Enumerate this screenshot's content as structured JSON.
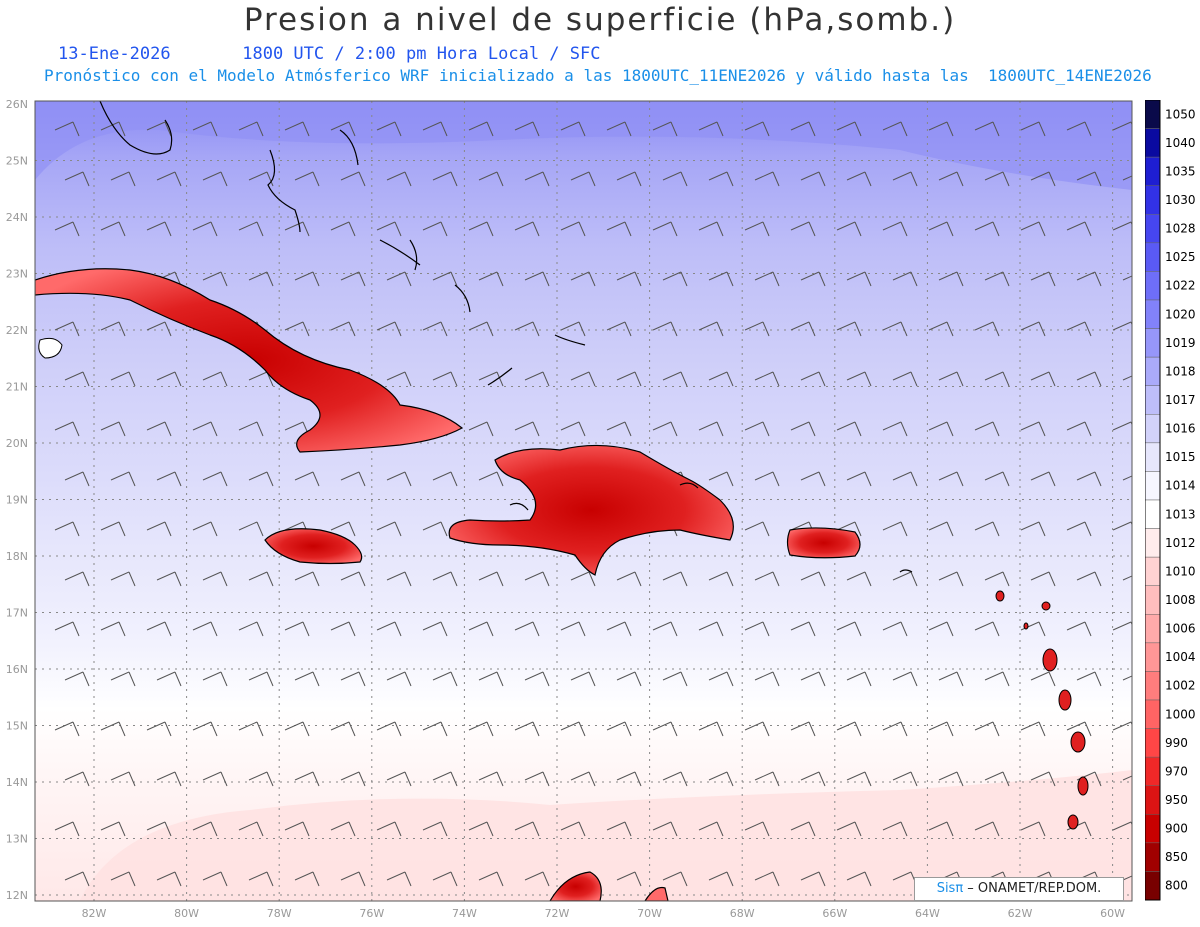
{
  "title": "Presion a nivel de superficie (hPa,somb.)",
  "subtitle_date": "13-Ene-2026",
  "subtitle_time": "1800 UTC / 2:00 pm Hora Local / SFC",
  "subtitle_model": "Pronóstico con el Modelo Atmósferico WRF inicializado a las 1800UTC_11ENE2026 y válido hasta las  1800UTC_14ENE2026",
  "credit_brand": "Sisπ",
  "credit_text": " – ONAMET/REP.DOM.",
  "lat_labels": [
    "26N",
    "25N",
    "24N",
    "23N",
    "22N",
    "21N",
    "20N",
    "19N",
    "18N",
    "17N",
    "16N",
    "15N",
    "14N",
    "13N",
    "12N"
  ],
  "lon_labels": [
    "82W",
    "80W",
    "78W",
    "76W",
    "74W",
    "72W",
    "70W",
    "68W",
    "66W",
    "64W",
    "62W",
    "60W"
  ],
  "colorbar": {
    "levels": [
      "1050",
      "1040",
      "1035",
      "1030",
      "1028",
      "1025",
      "1022",
      "1020",
      "1019",
      "1018",
      "1017",
      "1016",
      "1015",
      "1014",
      "1013",
      "1012",
      "1010",
      "1008",
      "1006",
      "1004",
      "1002",
      "1000",
      "990",
      "970",
      "950",
      "900",
      "850",
      "800"
    ],
    "colors": [
      "#0a0a4a",
      "#0a0aa0",
      "#1e1ed2",
      "#3232e6",
      "#4646f0",
      "#5a5af5",
      "#6e6ef8",
      "#8282fa",
      "#9696fa",
      "#aaaafa",
      "#bebefa",
      "#d2d2fa",
      "#e6e6fc",
      "#f6f6ff",
      "#ffffff",
      "#ffecec",
      "#ffd2d2",
      "#ffbebe",
      "#ffaaaa",
      "#ff9696",
      "#ff7d7d",
      "#ff6464",
      "#ff4646",
      "#f02828",
      "#dc1414",
      "#c80000",
      "#a00000",
      "#780000"
    ]
  },
  "colors": {
    "title": "#333333",
    "subtitle_date": "#2255ee",
    "subtitle_model": "#1a8fe8",
    "axis_label": "#999999"
  }
}
